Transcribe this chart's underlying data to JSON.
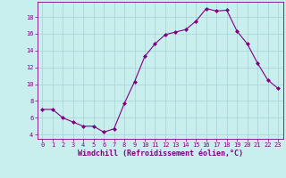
{
  "x": [
    0,
    1,
    2,
    3,
    4,
    5,
    6,
    7,
    8,
    9,
    10,
    11,
    12,
    13,
    14,
    15,
    16,
    17,
    18,
    19,
    20,
    21,
    22,
    23
  ],
  "y": [
    7.0,
    7.0,
    6.0,
    5.5,
    5.0,
    5.0,
    4.3,
    4.7,
    7.7,
    10.3,
    13.3,
    14.8,
    15.9,
    16.2,
    16.5,
    17.5,
    19.0,
    18.7,
    18.8,
    16.3,
    14.8,
    12.5,
    10.5,
    9.5
  ],
  "line_color": "#800080",
  "marker": "D",
  "marker_size": 2.0,
  "bg_color": "#c8eeee",
  "grid_color": "#a8d4d4",
  "xlabel": "Windchill (Refroidissement éolien,°C)",
  "xlabel_color": "#800080",
  "tick_color": "#800080",
  "yticks": [
    4,
    6,
    8,
    10,
    12,
    14,
    16,
    18
  ],
  "xticks": [
    0,
    1,
    2,
    3,
    4,
    5,
    6,
    7,
    8,
    9,
    10,
    11,
    12,
    13,
    14,
    15,
    16,
    17,
    18,
    19,
    20,
    21,
    22,
    23
  ],
  "xlim": [
    -0.5,
    23.5
  ],
  "ylim": [
    3.5,
    19.8
  ],
  "axis_spine_color": "#800080",
  "label_fontsize": 6.0,
  "tick_fontsize": 5.0,
  "linewidth": 0.8
}
